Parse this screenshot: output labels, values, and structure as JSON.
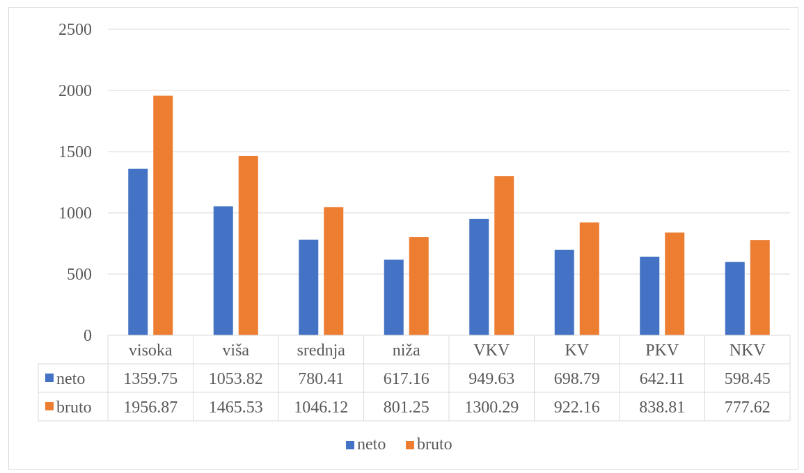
{
  "chart_data": {
    "type": "bar",
    "categories": [
      "visoka",
      "viša",
      "srednja",
      "niža",
      "VKV",
      "KV",
      "PKV",
      "NKV"
    ],
    "series": [
      {
        "name": "neto",
        "color": "#4472C4",
        "values": [
          1359.75,
          1053.82,
          780.41,
          617.16,
          949.63,
          698.79,
          642.11,
          598.45
        ]
      },
      {
        "name": "bruto",
        "color": "#ED7D31",
        "values": [
          1956.87,
          1465.53,
          1046.12,
          801.25,
          1300.29,
          922.16,
          838.81,
          777.62
        ]
      }
    ],
    "value_labels": {
      "neto": [
        "1359.75",
        "1053.82",
        "780.41",
        "617.16",
        "949.63",
        "698.79",
        "642.11",
        "598.45"
      ],
      "bruto": [
        "1956.87",
        "1465.53",
        "1046.12",
        "801.25",
        "1300.29",
        "922.16",
        "838.81",
        "777.62"
      ]
    },
    "ylim": [
      0,
      2500
    ],
    "yticks": [
      "0",
      "500",
      "1000",
      "1500",
      "2000",
      "2500"
    ],
    "grid": true,
    "data_table": true,
    "legend": {
      "placement": "bottom",
      "entries": [
        "neto",
        "bruto"
      ]
    },
    "title": "",
    "xlabel": "",
    "ylabel": ""
  }
}
